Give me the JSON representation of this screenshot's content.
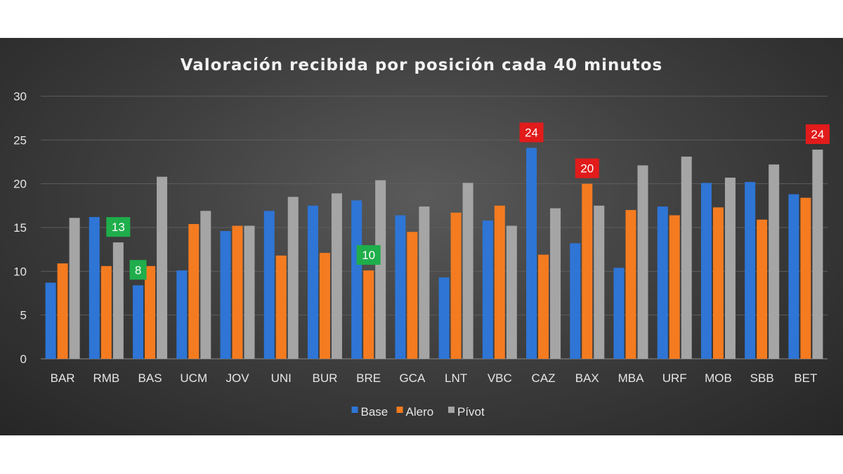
{
  "chart_data": {
    "type": "bar",
    "title": "Valoración recibida por posición cada 40 minutos",
    "xlabel": "",
    "ylabel": "",
    "ylim": [
      0,
      30
    ],
    "yticks": [
      0,
      5,
      10,
      15,
      20,
      25,
      30
    ],
    "grid": true,
    "legend_position": "bottom",
    "categories": [
      "BAR",
      "RMB",
      "BAS",
      "UCM",
      "JOV",
      "UNI",
      "BUR",
      "BRE",
      "GCA",
      "LNT",
      "VBC",
      "CAZ",
      "BAX",
      "MBA",
      "URF",
      "MOB",
      "SBB",
      "BET"
    ],
    "series": [
      {
        "name": "Base",
        "color": "#2e75d6",
        "values": [
          8.7,
          16.2,
          8.4,
          10.1,
          14.6,
          16.9,
          17.5,
          18.1,
          16.4,
          9.3,
          15.8,
          24.1,
          13.2,
          10.4,
          17.4,
          20.1,
          20.2,
          18.8
        ]
      },
      {
        "name": "Alero",
        "color": "#f47b20",
        "values": [
          10.9,
          10.6,
          10.6,
          15.4,
          15.2,
          11.8,
          12.1,
          10.1,
          14.5,
          16.7,
          17.5,
          11.9,
          20.0,
          17.0,
          16.4,
          17.3,
          15.9,
          18.4
        ]
      },
      {
        "name": "Pívot",
        "color": "#a5a5a5",
        "values": [
          16.1,
          13.3,
          20.8,
          16.9,
          15.2,
          18.5,
          18.9,
          20.4,
          17.4,
          20.1,
          15.2,
          17.2,
          17.5,
          22.1,
          23.1,
          20.7,
          22.2,
          23.9
        ]
      }
    ],
    "annotations": [
      {
        "text": "13",
        "category": "RMB",
        "series": "Pívot",
        "color": "#1fae4b"
      },
      {
        "text": "8",
        "category": "BAS",
        "series": "Base",
        "color": "#1fae4b"
      },
      {
        "text": "10",
        "category": "BRE",
        "series": "Alero",
        "color": "#1fae4b"
      },
      {
        "text": "24",
        "category": "CAZ",
        "series": "Base",
        "color": "#e21b1b"
      },
      {
        "text": "20",
        "category": "BAX",
        "series": "Alero",
        "color": "#e21b1b"
      },
      {
        "text": "24",
        "category": "BET",
        "series": "Pívot",
        "color": "#e21b1b"
      }
    ]
  }
}
